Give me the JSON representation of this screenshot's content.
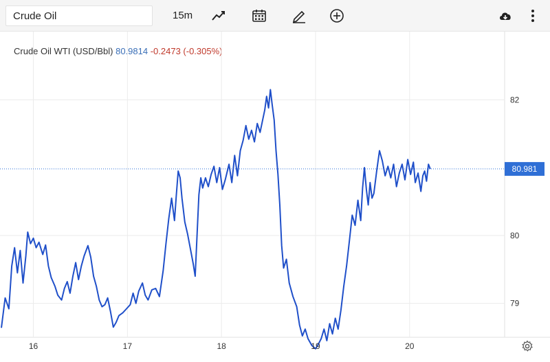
{
  "toolbar": {
    "symbol": "Crude Oil",
    "interval": "15m",
    "icons": [
      "line-chart-icon",
      "calendar-icon",
      "draw-pencil-icon",
      "add-circle-icon",
      "cloud-download-icon",
      "more-vertical-icon",
      "gear-icon"
    ]
  },
  "legend": {
    "name": "Crude Oil WTI (USD/Bbl)",
    "price": "80.9814",
    "change": "-0.2473 (-0.305%)"
  },
  "price_tag": "80.981",
  "colors": {
    "line": "#1f4fc9",
    "last_price_tag": "#2f6fd6",
    "change_negative": "#c0392b",
    "price_text": "#3a6fb7"
  },
  "chart_data": {
    "type": "line",
    "ylim": [
      78.5,
      82.6
    ],
    "yticks": [
      79,
      80,
      82
    ],
    "ytick_labels": [
      "79",
      "80",
      "82"
    ],
    "xticks": [
      {
        "label": "16",
        "x": 0.34
      },
      {
        "label": "17",
        "x": 1.34
      },
      {
        "label": "18",
        "x": 2.34
      },
      {
        "label": "19",
        "x": 3.34
      },
      {
        "label": "20",
        "x": 4.34
      }
    ],
    "xlim": [
      0,
      5.35
    ],
    "last_price": 80.981,
    "grid": true,
    "series": [
      {
        "points": [
          [
            0.0,
            78.64
          ],
          [
            0.04,
            79.08
          ],
          [
            0.08,
            78.92
          ],
          [
            0.11,
            79.55
          ],
          [
            0.14,
            79.82
          ],
          [
            0.17,
            79.45
          ],
          [
            0.2,
            79.78
          ],
          [
            0.23,
            79.3
          ],
          [
            0.26,
            79.7
          ],
          [
            0.28,
            80.05
          ],
          [
            0.31,
            79.88
          ],
          [
            0.34,
            79.96
          ],
          [
            0.37,
            79.82
          ],
          [
            0.4,
            79.9
          ],
          [
            0.44,
            79.72
          ],
          [
            0.47,
            79.86
          ],
          [
            0.5,
            79.55
          ],
          [
            0.53,
            79.38
          ],
          [
            0.57,
            79.25
          ],
          [
            0.6,
            79.12
          ],
          [
            0.64,
            79.05
          ],
          [
            0.67,
            79.22
          ],
          [
            0.7,
            79.32
          ],
          [
            0.73,
            79.15
          ],
          [
            0.76,
            79.4
          ],
          [
            0.79,
            79.6
          ],
          [
            0.82,
            79.35
          ],
          [
            0.85,
            79.55
          ],
          [
            0.88,
            79.7
          ],
          [
            0.92,
            79.85
          ],
          [
            0.95,
            79.68
          ],
          [
            0.98,
            79.4
          ],
          [
            1.01,
            79.25
          ],
          [
            1.04,
            79.05
          ],
          [
            1.07,
            78.95
          ],
          [
            1.1,
            78.98
          ],
          [
            1.13,
            79.08
          ],
          [
            1.16,
            78.88
          ],
          [
            1.19,
            78.65
          ],
          [
            1.22,
            78.72
          ],
          [
            1.25,
            78.82
          ],
          [
            1.29,
            78.86
          ],
          [
            1.33,
            78.92
          ],
          [
            1.37,
            78.98
          ],
          [
            1.4,
            79.15
          ],
          [
            1.43,
            79.0
          ],
          [
            1.46,
            79.18
          ],
          [
            1.5,
            79.3
          ],
          [
            1.53,
            79.12
          ],
          [
            1.56,
            79.05
          ],
          [
            1.6,
            79.2
          ],
          [
            1.64,
            79.22
          ],
          [
            1.68,
            79.1
          ],
          [
            1.72,
            79.48
          ],
          [
            1.75,
            79.88
          ],
          [
            1.78,
            80.25
          ],
          [
            1.81,
            80.55
          ],
          [
            1.84,
            80.22
          ],
          [
            1.86,
            80.6
          ],
          [
            1.88,
            80.95
          ],
          [
            1.9,
            80.85
          ],
          [
            1.92,
            80.55
          ],
          [
            1.95,
            80.2
          ],
          [
            1.98,
            80.02
          ],
          [
            2.01,
            79.8
          ],
          [
            2.04,
            79.58
          ],
          [
            2.06,
            79.4
          ],
          [
            2.08,
            80.0
          ],
          [
            2.1,
            80.6
          ],
          [
            2.12,
            80.85
          ],
          [
            2.14,
            80.7
          ],
          [
            2.17,
            80.85
          ],
          [
            2.2,
            80.72
          ],
          [
            2.23,
            80.9
          ],
          [
            2.26,
            81.02
          ],
          [
            2.29,
            80.78
          ],
          [
            2.32,
            81.0
          ],
          [
            2.35,
            80.68
          ],
          [
            2.38,
            80.82
          ],
          [
            2.42,
            81.05
          ],
          [
            2.45,
            80.78
          ],
          [
            2.48,
            81.18
          ],
          [
            2.51,
            80.88
          ],
          [
            2.54,
            81.25
          ],
          [
            2.57,
            81.4
          ],
          [
            2.6,
            81.62
          ],
          [
            2.63,
            81.42
          ],
          [
            2.66,
            81.55
          ],
          [
            2.69,
            81.38
          ],
          [
            2.72,
            81.65
          ],
          [
            2.75,
            81.52
          ],
          [
            2.78,
            81.72
          ],
          [
            2.8,
            81.85
          ],
          [
            2.82,
            82.05
          ],
          [
            2.84,
            81.88
          ],
          [
            2.86,
            82.15
          ],
          [
            2.88,
            81.92
          ],
          [
            2.9,
            81.7
          ],
          [
            2.92,
            81.25
          ],
          [
            2.94,
            80.9
          ],
          [
            2.96,
            80.45
          ],
          [
            2.98,
            79.85
          ],
          [
            3.0,
            79.52
          ],
          [
            3.03,
            79.65
          ],
          [
            3.06,
            79.3
          ],
          [
            3.1,
            79.1
          ],
          [
            3.14,
            78.95
          ],
          [
            3.17,
            78.68
          ],
          [
            3.2,
            78.52
          ],
          [
            3.23,
            78.62
          ],
          [
            3.26,
            78.48
          ],
          [
            3.3,
            78.38
          ],
          [
            3.34,
            78.33
          ],
          [
            3.37,
            78.4
          ],
          [
            3.4,
            78.48
          ],
          [
            3.43,
            78.62
          ],
          [
            3.46,
            78.45
          ],
          [
            3.49,
            78.7
          ],
          [
            3.52,
            78.55
          ],
          [
            3.55,
            78.78
          ],
          [
            3.58,
            78.62
          ],
          [
            3.61,
            78.9
          ],
          [
            3.64,
            79.25
          ],
          [
            3.67,
            79.55
          ],
          [
            3.7,
            79.92
          ],
          [
            3.73,
            80.3
          ],
          [
            3.76,
            80.15
          ],
          [
            3.79,
            80.52
          ],
          [
            3.82,
            80.22
          ],
          [
            3.84,
            80.7
          ],
          [
            3.86,
            81.0
          ],
          [
            3.88,
            80.68
          ],
          [
            3.9,
            80.45
          ],
          [
            3.92,
            80.78
          ],
          [
            3.94,
            80.55
          ],
          [
            3.96,
            80.62
          ],
          [
            3.99,
            80.95
          ],
          [
            4.02,
            81.25
          ],
          [
            4.05,
            81.1
          ],
          [
            4.08,
            80.88
          ],
          [
            4.11,
            81.02
          ],
          [
            4.14,
            80.85
          ],
          [
            4.17,
            81.05
          ],
          [
            4.2,
            80.72
          ],
          [
            4.23,
            80.92
          ],
          [
            4.26,
            81.05
          ],
          [
            4.29,
            80.82
          ],
          [
            4.32,
            81.12
          ],
          [
            4.35,
            80.9
          ],
          [
            4.38,
            81.08
          ],
          [
            4.4,
            80.78
          ],
          [
            4.43,
            80.92
          ],
          [
            4.46,
            80.65
          ],
          [
            4.48,
            80.88
          ],
          [
            4.5,
            80.95
          ],
          [
            4.52,
            80.8
          ],
          [
            4.54,
            81.05
          ],
          [
            4.56,
            80.98
          ]
        ]
      }
    ]
  }
}
